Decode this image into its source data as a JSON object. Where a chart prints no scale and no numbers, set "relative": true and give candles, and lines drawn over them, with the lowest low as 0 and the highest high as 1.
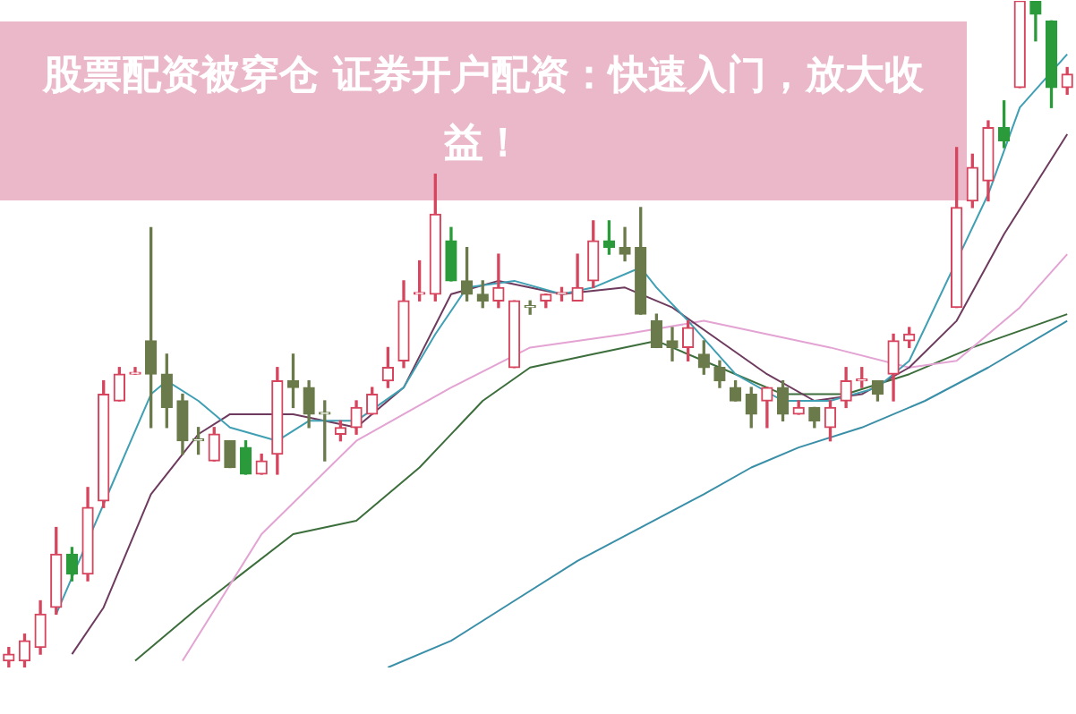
{
  "chart_data": {
    "type": "candlestick",
    "title": "股票配资被穿仓 证券开户配资：快速入门，放大收益！",
    "relative": true,
    "categories": [
      null,
      null,
      null,
      null,
      null,
      null,
      null,
      null,
      null,
      null,
      null,
      null,
      null,
      null,
      null,
      null,
      null,
      null,
      null,
      null,
      null,
      null,
      null,
      null,
      null,
      null,
      null,
      null,
      null,
      null,
      null,
      null,
      null,
      null,
      null,
      null,
      null,
      null,
      null,
      null,
      null,
      null,
      null,
      null,
      null,
      null,
      null,
      null,
      null,
      null,
      null,
      null,
      null,
      null,
      null,
      null,
      null,
      null,
      null,
      null,
      null,
      null,
      null,
      null,
      null,
      null,
      null,
      null
    ],
    "ohlc": [
      [
        0.01,
        0.03,
        0,
        0.02
      ],
      [
        0.01,
        0.05,
        0,
        0.04
      ],
      [
        0.03,
        0.1,
        0.02,
        0.08
      ],
      [
        0.09,
        0.21,
        0.08,
        0.17
      ],
      [
        0.17,
        0.18,
        0.13,
        0.14
      ],
      [
        0.14,
        0.27,
        0.13,
        0.24
      ],
      [
        0.25,
        0.43,
        0.24,
        0.41
      ],
      [
        0.4,
        0.45,
        0.4,
        0.44
      ],
      [
        0.44,
        0.45,
        0.44,
        0.44
      ],
      [
        0.49,
        0.66,
        0.36,
        0.44
      ],
      [
        0.44,
        0.47,
        0.36,
        0.39
      ],
      [
        0.4,
        0.41,
        0.32,
        0.34
      ],
      [
        0.34,
        0.36,
        0.32,
        0.34
      ],
      [
        0.31,
        0.36,
        0.31,
        0.35
      ],
      [
        0.34,
        0.34,
        0.3,
        0.3
      ],
      [
        0.33,
        0.34,
        0.29,
        0.29
      ],
      [
        0.29,
        0.32,
        0.29,
        0.31
      ],
      [
        0.32,
        0.45,
        0.29,
        0.43
      ],
      [
        0.43,
        0.47,
        0.39,
        0.42
      ],
      [
        0.42,
        0.43,
        0.36,
        0.38
      ],
      [
        0.38,
        0.4,
        0.31,
        0.38
      ],
      [
        0.35,
        0.37,
        0.34,
        0.36
      ],
      [
        0.36,
        0.4,
        0.35,
        0.39
      ],
      [
        0.38,
        0.42,
        0.38,
        0.41
      ],
      [
        0.43,
        0.48,
        0.42,
        0.45
      ],
      [
        0.46,
        0.58,
        0.45,
        0.55
      ],
      [
        0.56,
        0.61,
        0.55,
        0.56
      ],
      [
        0.56,
        0.74,
        0.55,
        0.68
      ],
      [
        0.64,
        0.66,
        0.58,
        0.58
      ],
      [
        0.58,
        0.63,
        0.55,
        0.56
      ],
      [
        0.56,
        0.58,
        0.54,
        0.55
      ],
      [
        0.55,
        0.62,
        0.54,
        0.57
      ],
      [
        0.45,
        0.55,
        0.45,
        0.55
      ],
      [
        0.54,
        0.55,
        0.53,
        0.54
      ],
      [
        0.55,
        0.56,
        0.54,
        0.56
      ],
      [
        0.56,
        0.57,
        0.55,
        0.56
      ],
      [
        0.55,
        0.62,
        0.55,
        0.57
      ],
      [
        0.58,
        0.67,
        0.57,
        0.64
      ],
      [
        0.64,
        0.67,
        0.62,
        0.63
      ],
      [
        0.63,
        0.66,
        0.61,
        0.62
      ],
      [
        0.63,
        0.69,
        0.53,
        0.53
      ],
      [
        0.52,
        0.53,
        0.48,
        0.48
      ],
      [
        0.49,
        0.51,
        0.46,
        0.48
      ],
      [
        0.48,
        0.52,
        0.46,
        0.51
      ],
      [
        0.47,
        0.49,
        0.44,
        0.45
      ],
      [
        0.45,
        0.46,
        0.42,
        0.43
      ],
      [
        0.42,
        0.43,
        0.4,
        0.4
      ],
      [
        0.41,
        0.42,
        0.36,
        0.38
      ],
      [
        0.4,
        0.42,
        0.36,
        0.42
      ],
      [
        0.42,
        0.43,
        0.37,
        0.38
      ],
      [
        0.38,
        0.4,
        0.38,
        0.39
      ],
      [
        0.39,
        0.39,
        0.36,
        0.37
      ],
      [
        0.36,
        0.4,
        0.34,
        0.39
      ],
      [
        0.4,
        0.45,
        0.39,
        0.43
      ],
      [
        0.43,
        0.45,
        0.42,
        0.43
      ],
      [
        0.43,
        0.43,
        0.4,
        0.41
      ],
      [
        0.44,
        0.5,
        0.4,
        0.49
      ],
      [
        0.49,
        0.51,
        0.48,
        0.5
      ],
      null,
      null,
      [
        0.54,
        0.78,
        0.54,
        0.69
      ],
      [
        0.7,
        0.77,
        0.69,
        0.75
      ],
      [
        0.73,
        0.82,
        0.7,
        0.81
      ],
      [
        0.81,
        0.85,
        0.78,
        0.79
      ],
      [
        0.87,
        1,
        0.87,
        1
      ],
      [
        1,
        1,
        0.94,
        0.98
      ],
      [
        0.97,
        0.97,
        0.84,
        0.87
      ],
      [
        0.87,
        0.9,
        0.86,
        0.89
      ]
    ],
    "colors": [
      "#d6455d",
      "#d6455d",
      "#d6455d",
      "#d6455d",
      "#2a9a3a",
      "#d6455d",
      "#d6455d",
      "#d6455d",
      "#d6455d",
      "#6b7a4a",
      "#6b7a4a",
      "#6b7a4a",
      "#6b7a4a",
      "#d6455d",
      "#6b7a4a",
      "#2a9a3a",
      "#d6455d",
      "#d6455d",
      "#6b7a4a",
      "#6b7a4a",
      "#6b7a4a",
      "#d6455d",
      "#d6455d",
      "#d6455d",
      "#d6455d",
      "#d6455d",
      "#d6455d",
      "#d6455d",
      "#2a9a3a",
      "#6b7a4a",
      "#6b7a4a",
      "#d6455d",
      "#d6455d",
      "#6b7a4a",
      "#d6455d",
      "#d6455d",
      "#d6455d",
      "#d6455d",
      "#2a9a3a",
      "#6b7a4a",
      "#6b7a4a",
      "#6b7a4a",
      "#6b7a4a",
      "#d6455d",
      "#6b7a4a",
      "#6b7a4a",
      "#6b7a4a",
      "#6b7a4a",
      "#d6455d",
      "#6b7a4a",
      "#d6455d",
      "#6b7a4a",
      "#d6455d",
      "#d6455d",
      "#d6455d",
      "#6b7a4a",
      "#d6455d",
      "#d6455d",
      "#d6455d",
      "#d6455d",
      "#d6455d",
      "#d6455d",
      "#d6455d",
      "#2a9a3a",
      "#d6455d",
      "#2a9a3a",
      "#2a9a3a",
      "#d6455d"
    ],
    "series": [
      {
        "type": "line",
        "color": "#3f9fb3",
        "values": [
          null,
          null,
          null,
          0.08,
          null,
          null,
          null,
          0.3,
          null,
          0.41,
          0.43,
          null,
          0.4,
          null,
          0.36,
          null,
          null,
          0.34,
          null,
          0.37,
          null,
          null,
          0.37,
          null,
          null,
          0.42,
          null,
          0.5,
          null,
          0.57,
          null,
          null,
          0.58,
          null,
          null,
          0.56,
          null,
          0.57,
          null,
          null,
          0.6,
          0.57,
          null,
          0.52,
          null,
          null,
          0.44,
          null,
          null,
          0.4,
          null,
          null,
          0.4,
          null,
          null,
          0.42,
          null,
          0.46,
          null,
          null,
          null,
          null,
          0.71,
          null,
          0.84,
          null,
          null,
          0.92
        ]
      },
      {
        "type": "line",
        "color": "#6e3b5e",
        "values": [
          null,
          null,
          null,
          null,
          0.02,
          null,
          0.09,
          null,
          null,
          0.26,
          null,
          null,
          0.35,
          null,
          0.38,
          null,
          null,
          null,
          0.38,
          null,
          null,
          null,
          0.36,
          null,
          null,
          0.42,
          null,
          null,
          0.56,
          null,
          null,
          0.58,
          null,
          null,
          null,
          0.56,
          null,
          null,
          null,
          0.57,
          null,
          null,
          0.54,
          null,
          null,
          0.49,
          null,
          null,
          0.44,
          null,
          null,
          0.4,
          null,
          null,
          0.41,
          null,
          null,
          0.45,
          null,
          null,
          0.52,
          null,
          null,
          0.65,
          null,
          null,
          null,
          0.8
        ]
      },
      {
        "type": "line",
        "color": "#e3a3d3",
        "values": [
          null,
          null,
          null,
          null,
          null,
          null,
          null,
          null,
          null,
          null,
          null,
          0.01,
          null,
          null,
          null,
          null,
          0.2,
          null,
          null,
          null,
          null,
          null,
          0.34,
          null,
          null,
          null,
          null,
          null,
          0.42,
          null,
          null,
          null,
          null,
          0.48,
          null,
          null,
          null,
          null,
          null,
          0.5,
          null,
          null,
          null,
          null,
          0.52,
          null,
          null,
          null,
          0.5,
          null,
          null,
          null,
          0.48,
          null,
          null,
          null,
          null,
          0.45,
          null,
          null,
          0.46,
          null,
          null,
          null,
          0.54,
          null,
          null,
          0.62
        ]
      },
      {
        "type": "line",
        "color": "#3c6e3c",
        "values": [
          null,
          null,
          null,
          null,
          null,
          null,
          null,
          null,
          0.01,
          null,
          null,
          null,
          0.09,
          null,
          null,
          null,
          null,
          null,
          0.2,
          null,
          null,
          null,
          0.22,
          null,
          null,
          null,
          0.3,
          null,
          null,
          null,
          0.4,
          null,
          null,
          0.45,
          null,
          null,
          null,
          0.47,
          null,
          null,
          null,
          0.49,
          null,
          null,
          null,
          0.45,
          null,
          null,
          null,
          0.41,
          null,
          null,
          null,
          0.41,
          null,
          null,
          null,
          0.44,
          null,
          null,
          null,
          0.48,
          null,
          null,
          null,
          null,
          null,
          0.53
        ]
      },
      {
        "type": "line",
        "color": "#3a8fa8",
        "values": [
          null,
          null,
          null,
          null,
          null,
          null,
          null,
          null,
          null,
          null,
          null,
          null,
          null,
          null,
          null,
          null,
          null,
          null,
          null,
          null,
          null,
          null,
          null,
          null,
          0,
          null,
          null,
          null,
          0.04,
          null,
          null,
          null,
          0.1,
          null,
          null,
          null,
          0.16,
          null,
          null,
          null,
          0.21,
          null,
          null,
          null,
          0.26,
          null,
          null,
          0.3,
          null,
          null,
          0.33,
          null,
          null,
          null,
          0.36,
          null,
          null,
          null,
          0.4,
          null,
          null,
          null,
          0.45,
          null,
          null,
          null,
          null,
          0.52
        ]
      }
    ]
  }
}
